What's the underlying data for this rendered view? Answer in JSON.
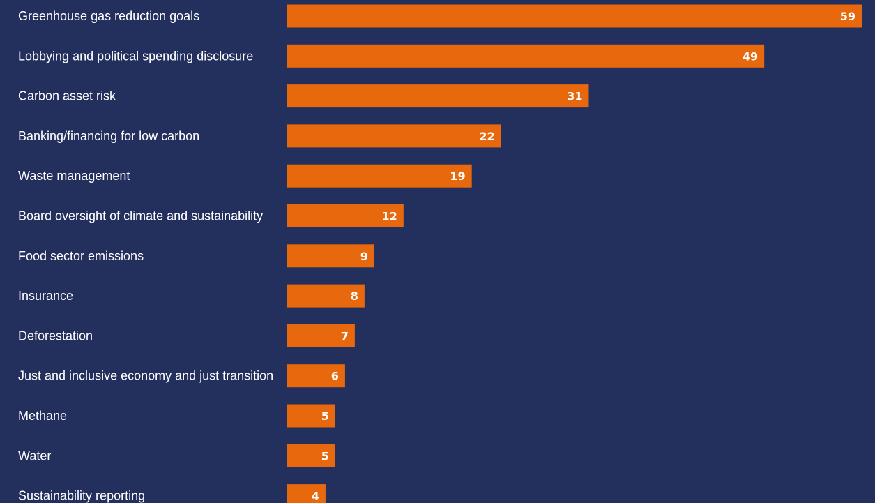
{
  "colors": {
    "background": "#232f5c",
    "bar": "#e8690d",
    "text": "#ffffff"
  },
  "chart_data": {
    "type": "bar",
    "orientation": "horizontal",
    "title": "",
    "xlabel": "",
    "ylabel": "",
    "grid": false,
    "legend": "none",
    "xlim": [
      0,
      59
    ],
    "categories": [
      "Greenhouse gas reduction goals",
      "Lobbying and political spending disclosure",
      "Carbon asset risk",
      "Banking/financing for low carbon",
      "Waste management",
      "Board oversight of climate and sustainability",
      "Food sector emissions",
      "Insurance",
      "Deforestation",
      "Just and inclusive economy and just transition",
      "Methane",
      "Water",
      "Sustainability reporting"
    ],
    "values": [
      59,
      49,
      31,
      22,
      19,
      12,
      9,
      8,
      7,
      6,
      5,
      5,
      4
    ]
  }
}
